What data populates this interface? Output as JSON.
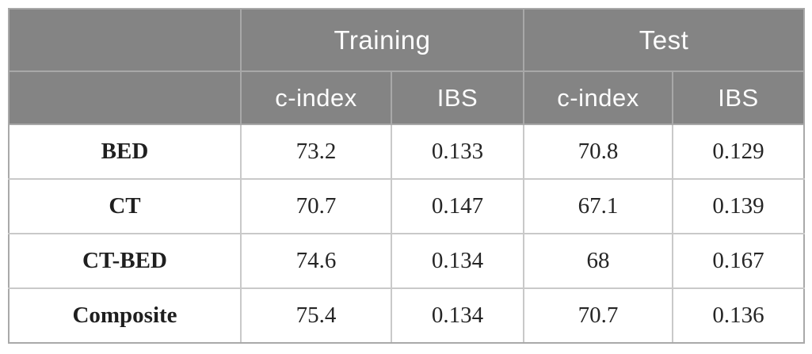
{
  "table": {
    "corner_label": "",
    "group_headers": [
      {
        "label": "Training"
      },
      {
        "label": "Test"
      }
    ],
    "sub_headers": {
      "training_cindex": "c-index",
      "training_ibs": "IBS",
      "test_cindex": "c-index",
      "test_ibs": "IBS"
    },
    "rows": [
      {
        "label": "BED",
        "training_cindex": "73.2",
        "training_ibs": "0.133",
        "test_cindex": "70.8",
        "test_ibs": "0.129"
      },
      {
        "label": "CT",
        "training_cindex": "70.7",
        "training_ibs": "0.147",
        "test_cindex": "67.1",
        "test_ibs": "0.139"
      },
      {
        "label": "CT-BED",
        "training_cindex": "74.6",
        "training_ibs": "0.134",
        "test_cindex": "68",
        "test_ibs": "0.167"
      },
      {
        "label": "Composite",
        "training_cindex": "75.4",
        "training_ibs": "0.134",
        "test_cindex": "70.7",
        "test_ibs": "0.136"
      }
    ],
    "colors": {
      "header_background": "#848484",
      "header_text": "#fdfdfd",
      "header_divider": "#a8a8a8",
      "body_divider": "#c9c9c9",
      "outer_border": "#9f9f9f",
      "body_text": "#252525"
    }
  },
  "chart_data": {
    "type": "table",
    "title": "",
    "column_groups": [
      "Training",
      "Test"
    ],
    "columns": [
      "",
      "Training c-index",
      "Training IBS",
      "Test c-index",
      "Test IBS"
    ],
    "row_labels": [
      "BED",
      "CT",
      "CT-BED",
      "Composite"
    ],
    "values": [
      [
        73.2,
        0.133,
        70.8,
        0.129
      ],
      [
        70.7,
        0.147,
        67.1,
        0.139
      ],
      [
        74.6,
        0.134,
        68,
        0.167
      ],
      [
        75.4,
        0.134,
        70.7,
        0.136
      ]
    ]
  }
}
